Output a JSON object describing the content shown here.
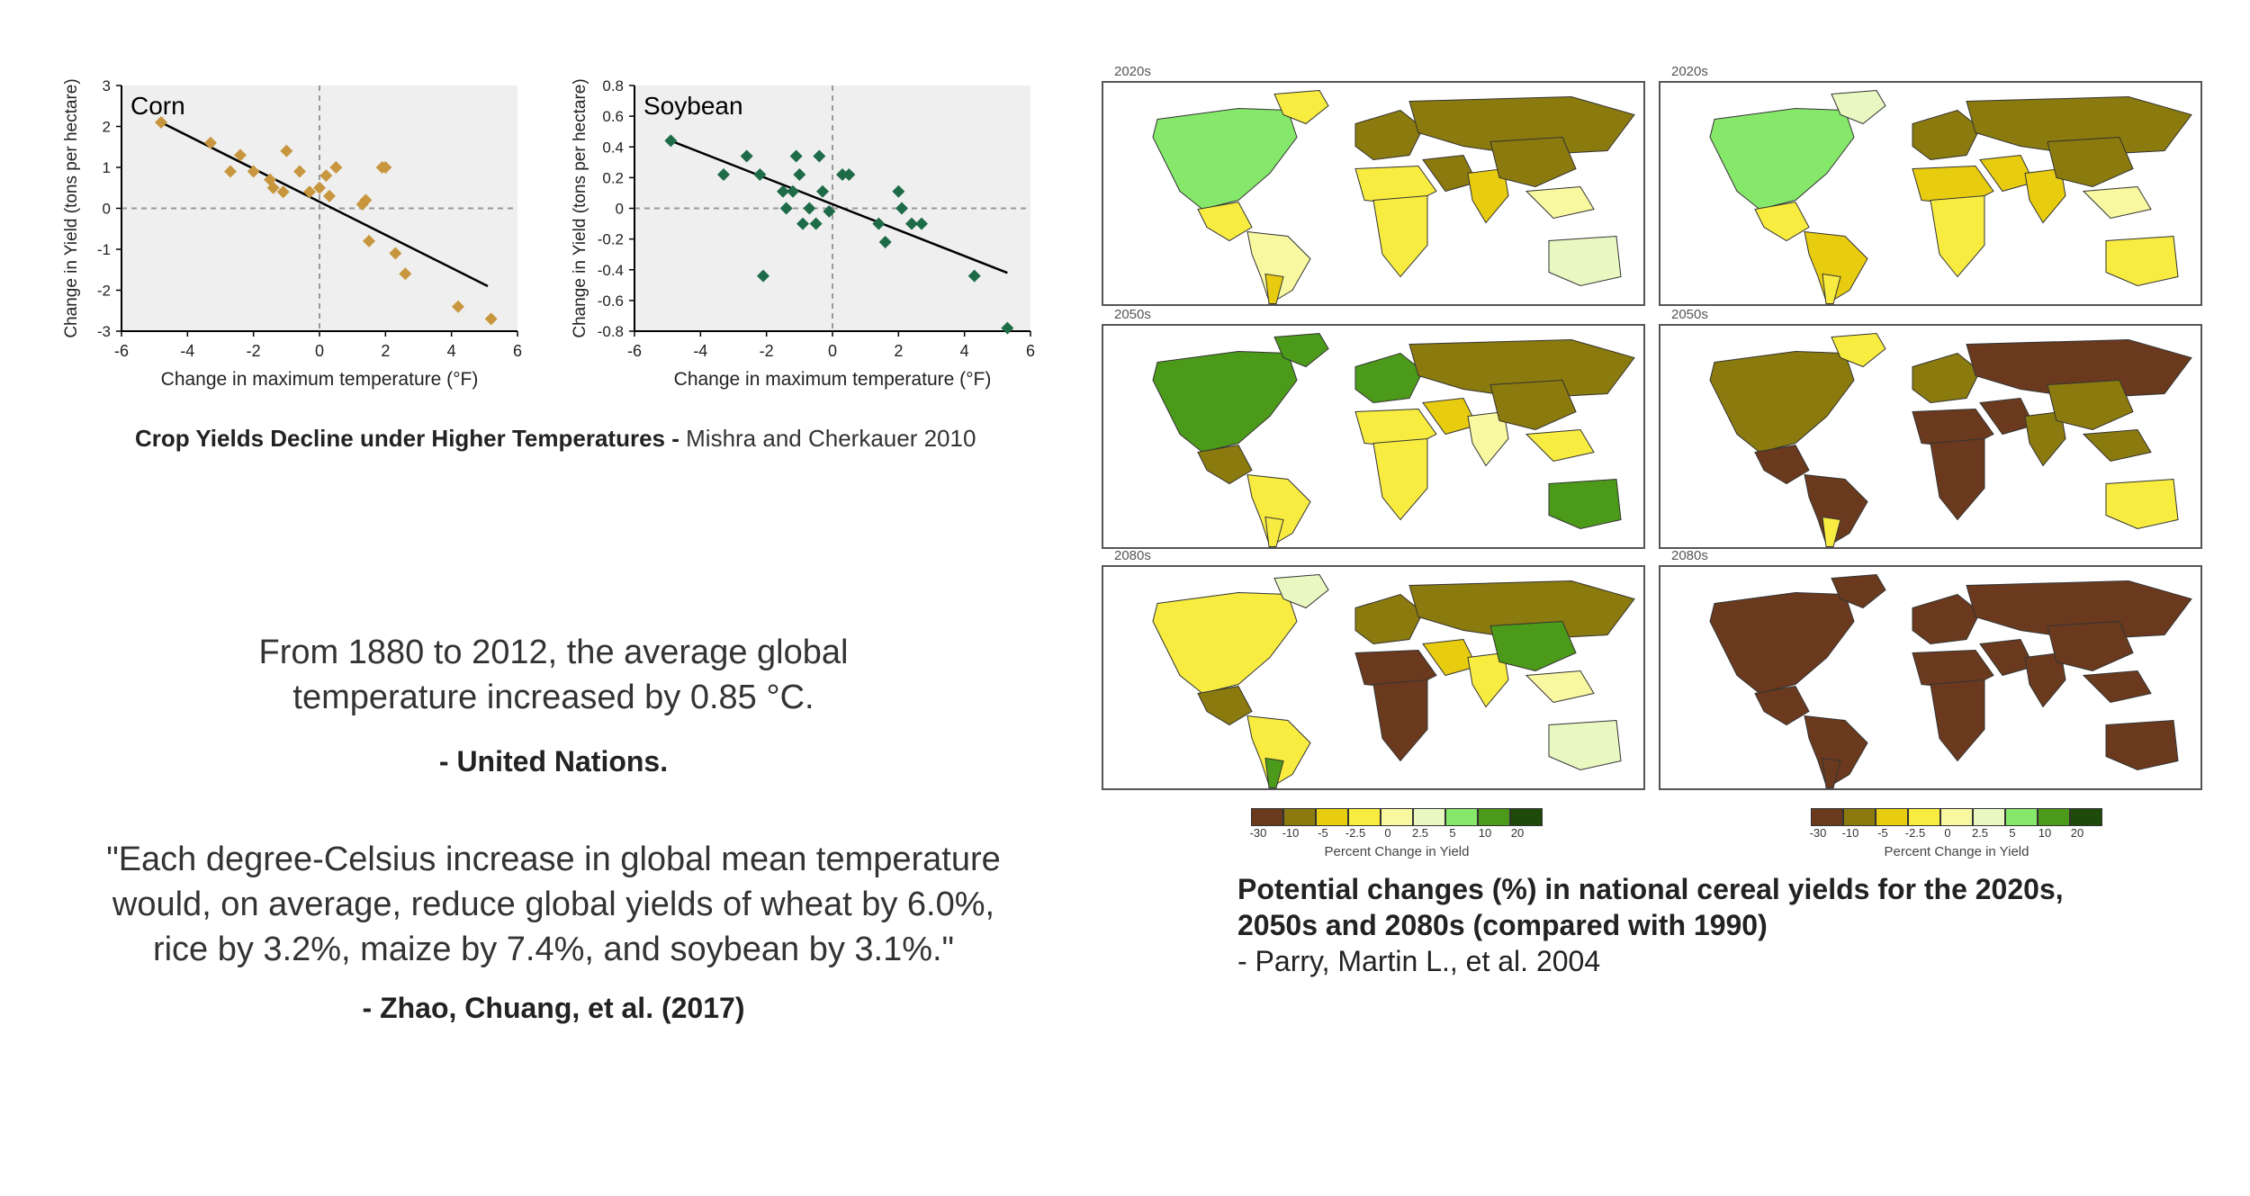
{
  "chart_data": [
    {
      "type": "scatter",
      "title": "Corn",
      "xlabel": "Change in maximum temperature (°F)",
      "ylabel": "Change in Yield (tons per hectare)",
      "xlim": [
        -6,
        6
      ],
      "ylim": [
        -3,
        3
      ],
      "xticks": [
        -6,
        -4,
        -2,
        0,
        2,
        4,
        6
      ],
      "yticks": [
        -3,
        -2,
        -1,
        0,
        1,
        2,
        3
      ],
      "marker_color": "#c8963e",
      "x": [
        -4.8,
        -3.3,
        -2.7,
        -2.4,
        -2.0,
        -1.5,
        -1.4,
        -1.1,
        -1.0,
        -0.6,
        -0.3,
        0.0,
        0.2,
        0.3,
        0.5,
        1.3,
        1.4,
        1.5,
        1.9,
        2.0,
        2.3,
        2.6,
        4.2,
        5.2
      ],
      "y": [
        2.1,
        1.6,
        0.9,
        1.3,
        0.9,
        0.7,
        0.5,
        0.4,
        1.4,
        0.9,
        0.4,
        0.5,
        0.8,
        0.3,
        1.0,
        0.1,
        0.2,
        -0.8,
        1.0,
        1.0,
        -1.1,
        -1.6,
        -2.4,
        -2.7
      ],
      "trend": {
        "x": [
          -4.8,
          5.1
        ],
        "y": [
          2.1,
          -1.9
        ],
        "color": "#000000"
      }
    },
    {
      "type": "scatter",
      "title": "Soybean",
      "xlabel": "Change in maximum temperature (°F)",
      "ylabel": "Change in Yield (tons per hectare)",
      "xlim": [
        -6,
        6
      ],
      "ylim": [
        -0.8,
        0.8
      ],
      "xticks": [
        -6,
        -4,
        -2,
        0,
        2,
        4,
        6
      ],
      "yticks": [
        -0.8,
        -0.6,
        -0.4,
        -0.2,
        0,
        0.2,
        0.4,
        0.6,
        0.8
      ],
      "marker_color": "#1e6b48",
      "x": [
        -4.9,
        -3.3,
        -2.6,
        -2.2,
        -2.1,
        -1.5,
        -1.4,
        -1.2,
        -1.1,
        -1.0,
        -0.9,
        -0.7,
        -0.5,
        -0.4,
        -0.3,
        -0.1,
        0.3,
        0.5,
        1.4,
        1.6,
        2.0,
        2.1,
        2.4,
        2.7,
        4.3,
        5.3
      ],
      "y": [
        0.44,
        0.22,
        0.34,
        0.22,
        -0.44,
        0.11,
        0.0,
        0.11,
        0.34,
        0.22,
        -0.1,
        0.0,
        -0.1,
        0.34,
        0.11,
        -0.02,
        0.22,
        0.22,
        -0.1,
        -0.22,
        0.11,
        0.0,
        -0.1,
        -0.1,
        -0.44,
        -0.78
      ],
      "trend": {
        "x": [
          -4.9,
          5.3
        ],
        "y": [
          0.44,
          -0.42
        ],
        "color": "#000000"
      }
    }
  ],
  "scatter_caption": {
    "bold": "Crop Yields Decline under Higher Temperatures -",
    "normal": " Mishra and Cherkauer 2010"
  },
  "quote1": {
    "line1": "From 1880 to 2012, the average global",
    "line2": "temperature increased by 0.85 °C.",
    "source": "- United Nations."
  },
  "quote2": {
    "line1": "\"Each degree-Celsius increase in global mean temperature",
    "line2": "would, on average, reduce global yields of wheat by 6.0%,",
    "line3": "rice by 3.2%, maize by 7.4%, and soybean by 3.1%.\"",
    "source": "- Zhao, Chuang, et al. (2017)"
  },
  "maps": {
    "decades": [
      "2020s",
      "2020s",
      "2050s",
      "2050s",
      "2080s",
      "2080s"
    ],
    "legend": {
      "ticks": [
        "-30",
        "-10",
        "-5",
        "-2.5",
        "0",
        "2.5",
        "5",
        "10",
        "20"
      ],
      "colors": [
        "#6b3a1e",
        "#8b7a0e",
        "#e8cc10",
        "#f8ec40",
        "#f8f8a0",
        "#e8f8c0",
        "#86e86a",
        "#4c9a1a",
        "#1e4a0a"
      ],
      "title": "Percent Change in Yield"
    },
    "caption_title_line1": "Potential changes (%) in national cereal yields for the 2020s,",
    "caption_title_line2": "2050s and 2080s (compared with 1990)",
    "caption_source": "- Parry, Martin L., et al. 2004"
  },
  "colors": {
    "plot_bg": "#efefef",
    "ocean": "#ffffff",
    "land_outline": "#333333"
  }
}
